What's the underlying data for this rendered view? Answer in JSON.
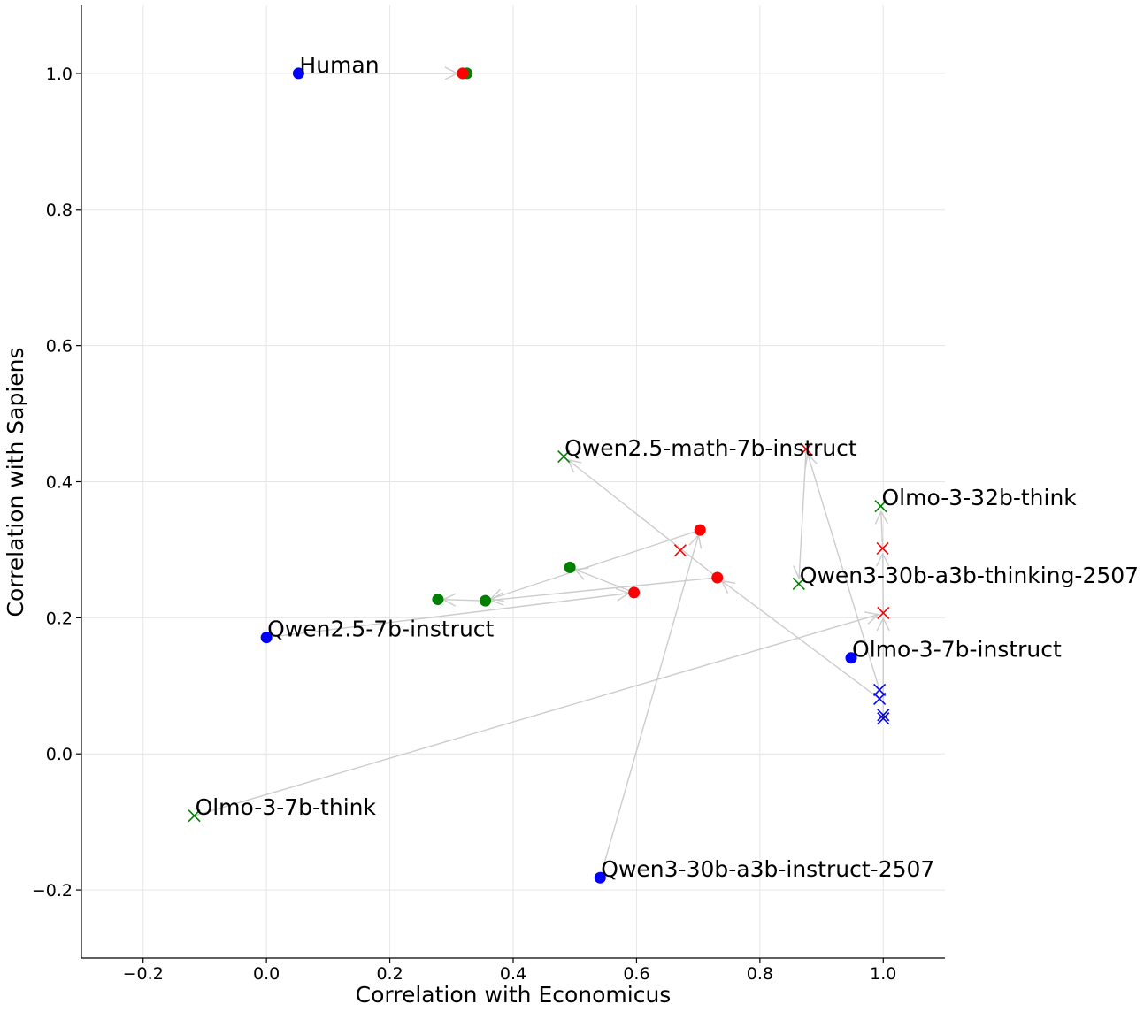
{
  "chart_data": {
    "type": "scatter",
    "title": "",
    "xlabel": "Correlation with Economicus",
    "ylabel": "Correlation with Sapiens",
    "xlim": [
      -0.3,
      1.1
    ],
    "ylim": [
      -0.3,
      1.1
    ],
    "x_ticks": [
      "−0.2",
      "0.0",
      "0.2",
      "0.4",
      "0.6",
      "0.8",
      "1.0"
    ],
    "y_ticks": [
      "−0.2",
      "0.0",
      "0.2",
      "0.4",
      "0.6",
      "0.8",
      "1.0"
    ],
    "grid": true,
    "colors": {
      "blue": "#0000ff",
      "red": "#ff0000",
      "green": "#008000",
      "arrow": "#cccccc"
    },
    "points": [
      {
        "x": 0.052,
        "y": 1.0,
        "color": "blue",
        "marker": "circle",
        "label": "Human"
      },
      {
        "x": 0.325,
        "y": 1.0,
        "color": "green",
        "marker": "circle"
      },
      {
        "x": 0.318,
        "y": 1.0,
        "color": "red",
        "marker": "circle"
      },
      {
        "x": 0.0,
        "y": 0.171,
        "color": "blue",
        "marker": "circle",
        "label": "Qwen2.5-7b-instruct"
      },
      {
        "x": 0.596,
        "y": 0.237,
        "color": "red",
        "marker": "circle"
      },
      {
        "x": 0.492,
        "y": 0.274,
        "color": "green",
        "marker": "circle"
      },
      {
        "x": 0.278,
        "y": 0.227,
        "color": "green",
        "marker": "circle"
      },
      {
        "x": 0.355,
        "y": 0.225,
        "color": "green",
        "marker": "circle"
      },
      {
        "x": 0.703,
        "y": 0.329,
        "color": "red",
        "marker": "circle"
      },
      {
        "x": 0.731,
        "y": 0.259,
        "color": "red",
        "marker": "circle"
      },
      {
        "x": 0.541,
        "y": -0.182,
        "color": "blue",
        "marker": "circle",
        "label": "Qwen3-30b-a3b-instruct-2507"
      },
      {
        "x": 0.948,
        "y": 0.141,
        "color": "blue",
        "marker": "circle",
        "label": "Olmo-3-7b-instruct"
      },
      {
        "x": 0.482,
        "y": 0.437,
        "color": "green",
        "marker": "x",
        "label": "Qwen2.5-math-7b-instruct"
      },
      {
        "x": 0.996,
        "y": 0.364,
        "color": "green",
        "marker": "x",
        "label": "Olmo-3-32b-think"
      },
      {
        "x": 0.863,
        "y": 0.25,
        "color": "green",
        "marker": "x",
        "label": "Qwen3-30b-a3b-thinking-2507"
      },
      {
        "x": -0.117,
        "y": -0.091,
        "color": "green",
        "marker": "x",
        "label": "Olmo-3-7b-think"
      },
      {
        "x": 0.875,
        "y": 0.448,
        "color": "red",
        "marker": "x"
      },
      {
        "x": 0.671,
        "y": 0.299,
        "color": "red",
        "marker": "x"
      },
      {
        "x": 0.999,
        "y": 0.302,
        "color": "red",
        "marker": "x"
      },
      {
        "x": 1.0,
        "y": 0.207,
        "color": "red",
        "marker": "x"
      },
      {
        "x": 0.994,
        "y": 0.094,
        "color": "blue",
        "marker": "x"
      },
      {
        "x": 0.994,
        "y": 0.081,
        "color": "blue",
        "marker": "x"
      },
      {
        "x": 1.0,
        "y": 0.057,
        "color": "blue",
        "marker": "x"
      },
      {
        "x": 1.0,
        "y": 0.052,
        "color": "blue",
        "marker": "x"
      }
    ],
    "arrows": [
      {
        "from": [
          0.052,
          1.0
        ],
        "to": [
          0.318,
          1.0
        ]
      },
      {
        "from": [
          0.0,
          0.171
        ],
        "to": [
          0.596,
          0.237
        ]
      },
      {
        "from": [
          0.596,
          0.237
        ],
        "to": [
          0.492,
          0.274
        ]
      },
      {
        "from": [
          0.731,
          0.259
        ],
        "to": [
          0.355,
          0.225
        ]
      },
      {
        "from": [
          0.355,
          0.225
        ],
        "to": [
          0.278,
          0.227
        ]
      },
      {
        "from": [
          0.703,
          0.329
        ],
        "to": [
          0.355,
          0.225
        ]
      },
      {
        "from": [
          0.541,
          -0.182
        ],
        "to": [
          0.703,
          0.329
        ]
      },
      {
        "from": [
          0.994,
          0.081
        ],
        "to": [
          0.731,
          0.259
        ]
      },
      {
        "from": [
          0.731,
          0.259
        ],
        "to": [
          0.482,
          0.437
        ]
      },
      {
        "from": [
          0.994,
          0.094
        ],
        "to": [
          0.875,
          0.448
        ]
      },
      {
        "from": [
          0.875,
          0.448
        ],
        "to": [
          0.863,
          0.25
        ]
      },
      {
        "from": [
          1.0,
          0.057
        ],
        "to": [
          1.0,
          0.207
        ]
      },
      {
        "from": [
          1.0,
          0.207
        ],
        "to": [
          0.999,
          0.302
        ]
      },
      {
        "from": [
          0.999,
          0.302
        ],
        "to": [
          0.996,
          0.364
        ]
      },
      {
        "from": [
          -0.117,
          -0.091
        ],
        "to": [
          1.0,
          0.207
        ]
      }
    ]
  }
}
